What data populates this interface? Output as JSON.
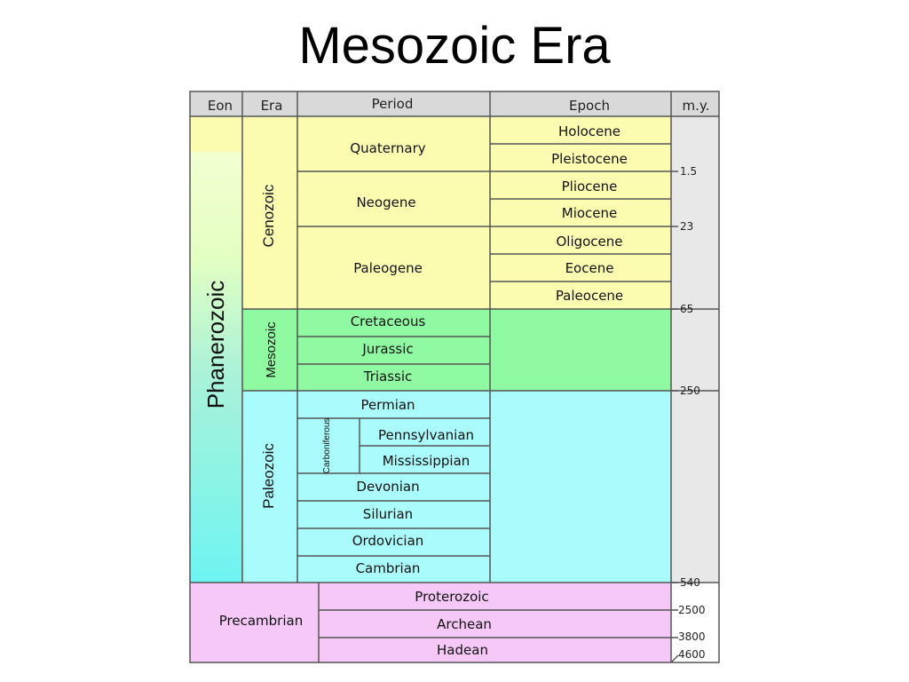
{
  "title": "Mesozoic Era",
  "headers": {
    "eon": "Eon",
    "era": "Era",
    "period": "Period",
    "epoch": "Epoch",
    "my": "m.y."
  },
  "eons": {
    "phanerozoic": "Phanerozoic",
    "precambrian": "Precambrian"
  },
  "eras": {
    "cenozoic": "Cenozoic",
    "mesozoic": "Mesozoic",
    "paleozoic": "Paleozoic"
  },
  "periods": {
    "quaternary": "Quaternary",
    "neogene": "Neogene",
    "paleogene": "Paleogene",
    "cretaceous": "Cretaceous",
    "jurassic": "Jurassic",
    "triassic": "Triassic",
    "permian": "Permian",
    "carboniferous": "Carboniferous",
    "pennsylvanian": "Pennsylvanian",
    "mississippian": "Mississippian",
    "devonian": "Devonian",
    "silurian": "Silurian",
    "ordovician": "Ordovician",
    "cambrian": "Cambrian"
  },
  "epochs": {
    "holocene": "Holocene",
    "pleistocene": "Pleistocene",
    "pliocene": "Pliocene",
    "miocene": "Miocene",
    "oligocene": "Oligocene",
    "eocene": "Eocene",
    "paleocene": "Paleocene"
  },
  "precambrian_eons": {
    "proterozoic": "Proterozoic",
    "archean": "Archean",
    "hadean": "Hadean"
  },
  "my_ticks": [
    "1.5",
    "23",
    "65",
    "250",
    "540",
    "2500",
    "3800",
    "4600"
  ],
  "colors": {
    "header": "#d9d9d9",
    "cenozoic": "#fbfcb0",
    "mesozoic": "#8ffaa2",
    "paleozoic": "#aafbfb",
    "precambrian": "#f5c8f7",
    "my_column": "#e8e8e8"
  }
}
